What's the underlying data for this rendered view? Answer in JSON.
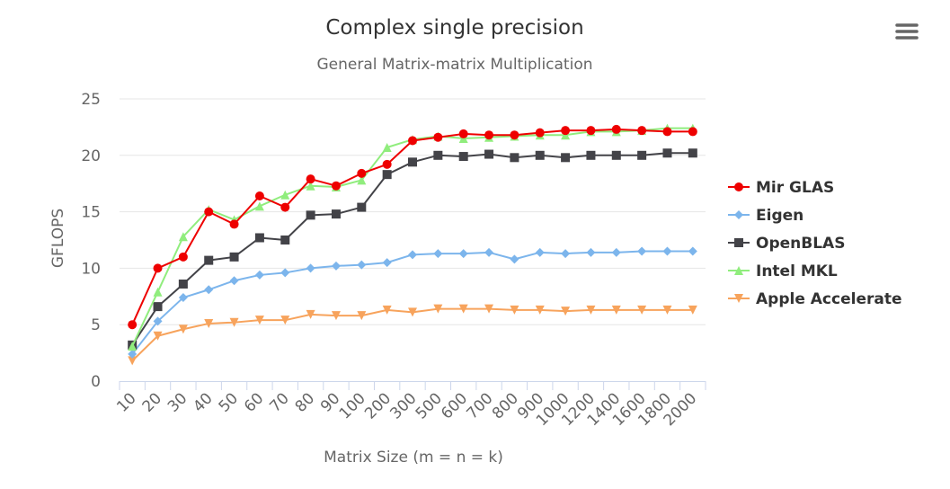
{
  "chart_data": {
    "type": "line",
    "title": "Complex single precision",
    "subtitle": "General Matrix-matrix Multiplication",
    "xlabel": "Matrix Size (m = n = k)",
    "ylabel": "GFLOPS",
    "ylim": [
      0,
      25
    ],
    "yticks": [
      0,
      5,
      10,
      15,
      20,
      25
    ],
    "grid": true,
    "legend_position": "right",
    "categories": [
      "10",
      "20",
      "30",
      "40",
      "50",
      "60",
      "70",
      "80",
      "90",
      "100",
      "200",
      "300",
      "500",
      "600",
      "700",
      "800",
      "900",
      "1000",
      "1200",
      "1400",
      "1600",
      "1800",
      "2000"
    ],
    "series": [
      {
        "name": "Mir GLAS",
        "color": "#ee0000",
        "marker": "circle",
        "values": [
          5.0,
          10.0,
          11.0,
          15.0,
          13.9,
          16.4,
          15.4,
          17.9,
          17.3,
          18.4,
          19.2,
          21.3,
          21.6,
          21.9,
          21.8,
          21.8,
          22.0,
          22.2,
          22.2,
          22.3,
          22.2,
          22.1,
          22.1
        ]
      },
      {
        "name": "Eigen",
        "color": "#7cb5ec",
        "marker": "diamond",
        "values": [
          2.4,
          5.3,
          7.4,
          8.1,
          8.9,
          9.4,
          9.6,
          10.0,
          10.2,
          10.3,
          10.5,
          11.2,
          11.3,
          11.3,
          11.4,
          10.8,
          11.4,
          11.3,
          11.4,
          11.4,
          11.5,
          11.5,
          11.5
        ]
      },
      {
        "name": "OpenBLAS",
        "color": "#434348",
        "marker": "square",
        "values": [
          3.2,
          6.6,
          8.6,
          10.7,
          11.0,
          12.7,
          12.5,
          14.7,
          14.8,
          15.4,
          18.3,
          19.4,
          20.0,
          19.9,
          20.1,
          19.8,
          20.0,
          19.8,
          20.0,
          20.0,
          20.0,
          20.2,
          20.2
        ]
      },
      {
        "name": "Intel MKL",
        "color": "#90ed7d",
        "marker": "triangle",
        "values": [
          3.1,
          7.9,
          12.8,
          15.2,
          14.3,
          15.5,
          16.5,
          17.3,
          17.2,
          17.8,
          20.7,
          21.4,
          21.7,
          21.5,
          21.6,
          21.7,
          21.8,
          21.8,
          22.1,
          22.1,
          22.2,
          22.4,
          22.4
        ]
      },
      {
        "name": "Apple Accelerate",
        "color": "#f7a35c",
        "marker": "triangle-down",
        "values": [
          1.8,
          4.0,
          4.6,
          5.1,
          5.2,
          5.4,
          5.4,
          5.9,
          5.8,
          5.8,
          6.3,
          6.1,
          6.4,
          6.4,
          6.4,
          6.3,
          6.3,
          6.2,
          6.3,
          6.3,
          6.3,
          6.3,
          6.3
        ]
      }
    ]
  },
  "menu": {
    "icon": "hamburger-menu-icon"
  }
}
